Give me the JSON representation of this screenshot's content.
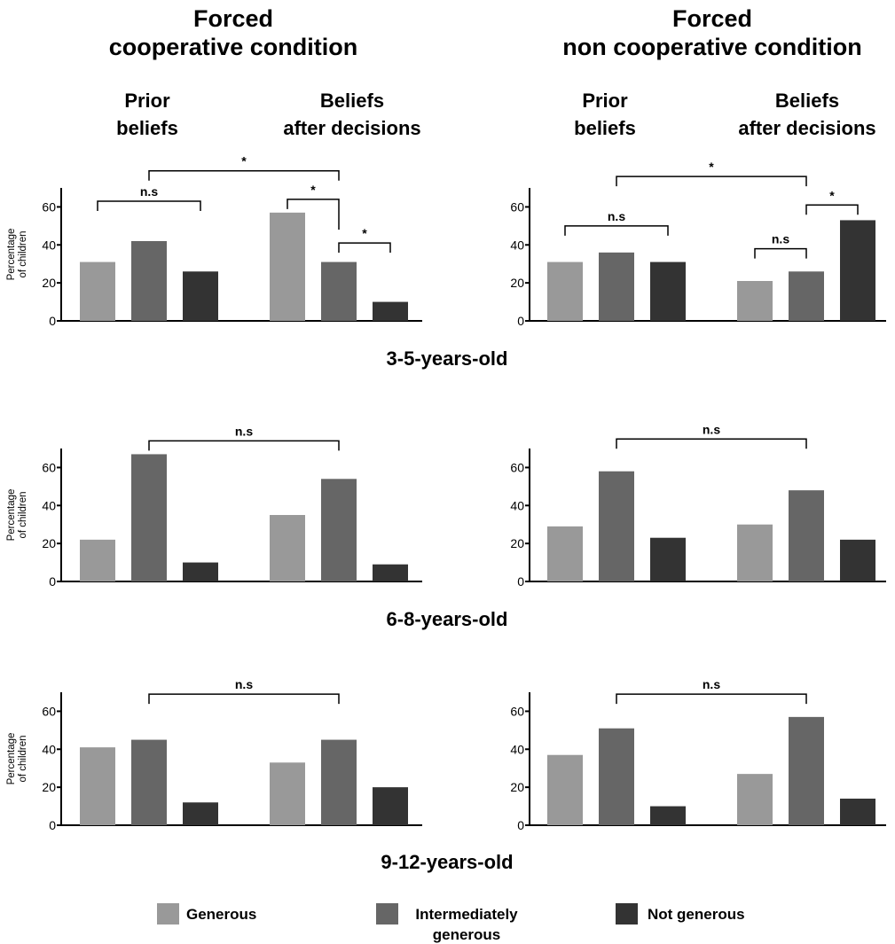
{
  "columns": {
    "left": {
      "title_lines": [
        "Forced",
        "cooperative condition"
      ],
      "subtitles": [
        [
          "Prior",
          "beliefs"
        ],
        [
          "Beliefs",
          "after decisions"
        ]
      ]
    },
    "right": {
      "title_lines": [
        "Forced",
        "non cooperative condition"
      ],
      "subtitles": [
        [
          "Prior",
          "beliefs"
        ],
        [
          "Beliefs",
          "after decisions"
        ]
      ]
    }
  },
  "rows": [
    {
      "age_label": "3-5-years-old"
    },
    {
      "age_label": "6-8-years-old"
    },
    {
      "age_label": "9-12-years-old"
    }
  ],
  "colors": {
    "generous": "#999999",
    "intermediate": "#666666",
    "not_generous": "#333333"
  },
  "legend": {
    "items": [
      {
        "key": "generous",
        "label_lines": [
          "Generous"
        ]
      },
      {
        "key": "intermediate",
        "label_lines": [
          "Intermediately",
          "generous"
        ]
      },
      {
        "key": "not_generous",
        "label_lines": [
          "Not generous"
        ]
      }
    ]
  },
  "chart_data": [
    {
      "type": "bar",
      "row": "3-5-years-old",
      "column": "left",
      "groups": [
        "Prior beliefs",
        "Beliefs after decisions"
      ],
      "series": [
        {
          "name": "Generous",
          "values": [
            31,
            57
          ]
        },
        {
          "name": "Intermediately generous",
          "values": [
            42,
            31
          ]
        },
        {
          "name": "Not generous",
          "values": [
            26,
            10
          ]
        }
      ],
      "ylabel_lines": [
        "Percentage",
        "of children"
      ],
      "yticks": [
        0,
        20,
        40,
        60
      ],
      "ylim": [
        0,
        70
      ],
      "annotations": [
        {
          "text": "n.s",
          "from": [
            0,
            0
          ],
          "to": [
            0,
            2
          ],
          "level": 63
        },
        {
          "text": "*",
          "from": [
            0,
            1
          ],
          "to": [
            1,
            1
          ],
          "level": 79
        },
        {
          "text": "*",
          "from": [
            1,
            0
          ],
          "to": [
            1,
            1
          ],
          "level": 64,
          "drop_to": 48
        },
        {
          "text": "*",
          "from": [
            1,
            1
          ],
          "to": [
            1,
            2
          ],
          "level": 41
        }
      ]
    },
    {
      "type": "bar",
      "row": "3-5-years-old",
      "column": "right",
      "groups": [
        "Prior beliefs",
        "Beliefs after decisions"
      ],
      "series": [
        {
          "name": "Generous",
          "values": [
            31,
            21
          ]
        },
        {
          "name": "Intermediately generous",
          "values": [
            36,
            26
          ]
        },
        {
          "name": "Not generous",
          "values": [
            31,
            53
          ]
        }
      ],
      "ylabel_lines": [],
      "yticks": [
        0,
        20,
        40,
        60
      ],
      "ylim": [
        0,
        70
      ],
      "annotations": [
        {
          "text": "n.s",
          "from": [
            0,
            0
          ],
          "to": [
            0,
            2
          ],
          "level": 50
        },
        {
          "text": "*",
          "from": [
            0,
            1
          ],
          "to": [
            1,
            1
          ],
          "level": 76
        },
        {
          "text": "*",
          "from": [
            1,
            1
          ],
          "to": [
            1,
            2
          ],
          "level": 61
        },
        {
          "text": "n.s",
          "from": [
            1,
            0
          ],
          "to": [
            1,
            1
          ],
          "level": 38
        }
      ]
    },
    {
      "type": "bar",
      "row": "6-8-years-old",
      "column": "left",
      "groups": [
        "Prior beliefs",
        "Beliefs after decisions"
      ],
      "series": [
        {
          "name": "Generous",
          "values": [
            22,
            35
          ]
        },
        {
          "name": "Intermediately generous",
          "values": [
            67,
            54
          ]
        },
        {
          "name": "Not generous",
          "values": [
            10,
            9
          ]
        }
      ],
      "ylabel_lines": [
        "Percentage",
        "of children"
      ],
      "yticks": [
        0,
        20,
        40,
        60
      ],
      "ylim": [
        0,
        70
      ],
      "annotations": [
        {
          "text": "n.s",
          "from": [
            0,
            1
          ],
          "to": [
            1,
            1
          ],
          "level": 74
        }
      ]
    },
    {
      "type": "bar",
      "row": "6-8-years-old",
      "column": "right",
      "groups": [
        "Prior beliefs",
        "Beliefs after decisions"
      ],
      "series": [
        {
          "name": "Generous",
          "values": [
            29,
            30
          ]
        },
        {
          "name": "Intermediately generous",
          "values": [
            58,
            48
          ]
        },
        {
          "name": "Not generous",
          "values": [
            23,
            22
          ]
        }
      ],
      "ylabel_lines": [],
      "yticks": [
        0,
        20,
        40,
        60
      ],
      "ylim": [
        0,
        70
      ],
      "annotations": [
        {
          "text": "n.s",
          "from": [
            0,
            1
          ],
          "to": [
            1,
            1
          ],
          "level": 75
        }
      ]
    },
    {
      "type": "bar",
      "row": "9-12-years-old",
      "column": "left",
      "groups": [
        "Prior beliefs",
        "Beliefs after decisions"
      ],
      "series": [
        {
          "name": "Generous",
          "values": [
            41,
            33
          ]
        },
        {
          "name": "Intermediately generous",
          "values": [
            45,
            45
          ]
        },
        {
          "name": "Not generous",
          "values": [
            12,
            20
          ]
        }
      ],
      "ylabel_lines": [
        "Percentage",
        "of children"
      ],
      "yticks": [
        0,
        20,
        40,
        60
      ],
      "ylim": [
        0,
        70
      ],
      "annotations": [
        {
          "text": "n.s",
          "from": [
            0,
            1
          ],
          "to": [
            1,
            1
          ],
          "level": 69
        }
      ]
    },
    {
      "type": "bar",
      "row": "9-12-years-old",
      "column": "right",
      "groups": [
        "Prior beliefs",
        "Beliefs after decisions"
      ],
      "series": [
        {
          "name": "Generous",
          "values": [
            37,
            27
          ]
        },
        {
          "name": "Intermediately generous",
          "values": [
            51,
            57
          ]
        },
        {
          "name": "Not generous",
          "values": [
            10,
            14
          ]
        }
      ],
      "ylabel_lines": [],
      "yticks": [
        0,
        20,
        40,
        60
      ],
      "ylim": [
        0,
        70
      ],
      "annotations": [
        {
          "text": "n.s",
          "from": [
            0,
            1
          ],
          "to": [
            1,
            1
          ],
          "level": 69
        }
      ]
    }
  ]
}
